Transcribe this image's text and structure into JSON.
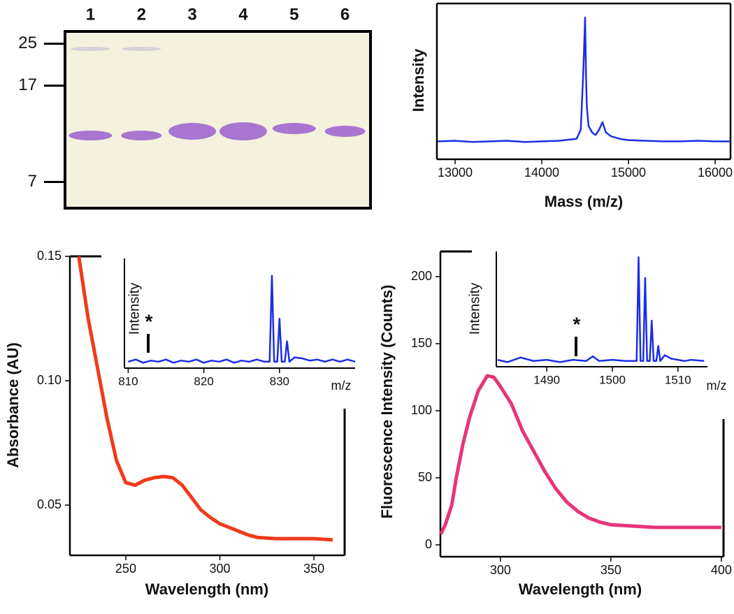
{
  "chart_data": [
    {
      "type": "gel",
      "categories": [
        "1",
        "2",
        "3",
        "4",
        "5",
        "6"
      ],
      "ylim": [
        5.5,
        28
      ],
      "yticks": [
        25,
        17,
        7
      ],
      "log_scale": true
    },
    {
      "type": "line",
      "x_label": "Mass (m/z)",
      "y_label": "Intensity",
      "color": "#1a2ee6",
      "x": [
        12800,
        13000,
        13200,
        13400,
        13600,
        13800,
        14000,
        14200,
        14400,
        14450,
        14480,
        14500,
        14510,
        14520,
        14540,
        14580,
        14620,
        14660,
        14700,
        14740,
        14800,
        14900,
        15000,
        15200,
        15400,
        15600,
        15800,
        16000,
        16177
      ],
      "values": [
        3,
        3.5,
        2.5,
        3,
        3.5,
        2.5,
        3,
        3.5,
        5,
        12,
        60,
        100,
        55,
        30,
        15,
        10,
        8,
        12,
        18,
        10,
        7,
        5,
        4,
        3.5,
        3,
        3,
        3.5,
        3,
        3
      ],
      "xlim": [
        12790,
        16177
      ],
      "ylim": [
        -11,
        111
      ],
      "xticks": [
        13000,
        14000,
        15000,
        16000
      ]
    },
    {
      "type": "line",
      "x_label": "Wavelength (nm)",
      "y_label": "Absorbance (AU)",
      "color": "#f03a1a",
      "x": [
        225,
        230,
        235,
        240,
        245,
        250,
        255,
        260,
        265,
        270,
        275,
        280,
        285,
        290,
        295,
        300,
        305,
        310,
        315,
        320,
        330,
        340,
        350,
        360
      ],
      "values": [
        0.15,
        0.125,
        0.105,
        0.085,
        0.068,
        0.059,
        0.058,
        0.06,
        0.061,
        0.0615,
        0.061,
        0.058,
        0.053,
        0.048,
        0.045,
        0.0425,
        0.041,
        0.0395,
        0.038,
        0.037,
        0.0365,
        0.0365,
        0.0365,
        0.036
      ],
      "xlim": [
        220.3,
        366.3
      ],
      "ylim": [
        0.0298,
        0.15
      ],
      "xticks": [
        250,
        300,
        350
      ],
      "yticks": [
        {
          "value": 0.05,
          "label": "0.05"
        },
        {
          "value": 0.1,
          "label": "0.10"
        },
        {
          "value": 0.15,
          "label": "0.15"
        }
      ]
    },
    {
      "type": "inset",
      "x_label": "m/z",
      "y_label": "Intensity",
      "annotation": "*",
      "color": "#1a2ee6",
      "x": [
        810,
        811,
        812,
        813,
        814,
        815,
        816,
        817,
        818,
        819,
        820,
        821,
        822,
        823,
        824,
        825,
        826,
        827,
        828,
        828.7,
        829,
        829.3,
        829.7,
        830,
        830.3,
        830.7,
        831,
        831.3,
        832,
        833,
        834,
        835,
        836,
        837,
        838,
        839,
        840
      ],
      "values": [
        5,
        7,
        4,
        6,
        5,
        7,
        4,
        6,
        5,
        7,
        4,
        6,
        5,
        7,
        4,
        6,
        5,
        7,
        5,
        5,
        85,
        5,
        5,
        45,
        5,
        5,
        24,
        5,
        9,
        8,
        6,
        7,
        5,
        7,
        5,
        7,
        5
      ],
      "xlim": [
        809.5,
        840
      ],
      "ylim": [
        -1,
        101
      ],
      "xticks": [
        810,
        820,
        830
      ]
    },
    {
      "type": "line",
      "x_label": "Wavelength (nm)",
      "y_label": "Fluorescence Intensity (Counts)",
      "color": "#e8347a",
      "x": [
        273,
        275,
        278,
        280,
        283,
        286,
        290,
        294,
        297,
        300,
        305,
        310,
        315,
        320,
        325,
        330,
        335,
        340,
        345,
        350,
        360,
        370,
        380,
        390,
        400
      ],
      "values": [
        8,
        15,
        30,
        50,
        75,
        95,
        115,
        126,
        125,
        118,
        105,
        85,
        70,
        55,
        42,
        32,
        25,
        20,
        17,
        15,
        14,
        13,
        13,
        13,
        13
      ],
      "xlim": [
        272.8,
        401
      ],
      "ylim": [
        -8.85,
        218.75
      ],
      "xticks": [
        300,
        350,
        400
      ],
      "yticks": [
        0,
        50,
        100,
        150,
        200
      ]
    },
    {
      "type": "inset",
      "x_label": "m/z",
      "y_label": "Intensity",
      "annotation": "*",
      "color": "#1a2ee6",
      "x": [
        1482.5,
        1484,
        1486,
        1488,
        1490,
        1492,
        1494,
        1496,
        1497,
        1498,
        1500,
        1502,
        1503.7,
        1504,
        1504.3,
        1504.7,
        1505,
        1505.3,
        1505.7,
        1506,
        1506.3,
        1506.7,
        1507,
        1507.3,
        1508,
        1509,
        1510,
        1511,
        1512,
        1514
      ],
      "values": [
        6,
        4,
        8,
        5,
        6,
        4,
        6,
        5,
        9,
        5,
        6,
        5,
        5,
        95,
        5,
        5,
        77,
        5,
        5,
        40,
        5,
        5,
        18,
        5,
        10,
        7,
        6,
        5,
        6,
        5
      ],
      "xlim": [
        1482.3,
        1514.5
      ],
      "ylim": [
        0,
        100
      ],
      "xticks": [
        1490,
        1500,
        1510
      ]
    }
  ]
}
